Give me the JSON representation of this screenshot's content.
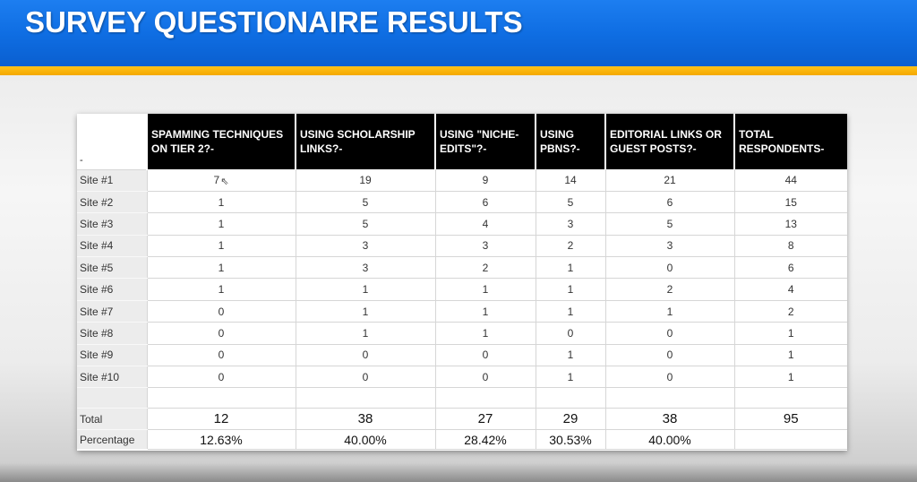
{
  "banner": {
    "title": "SURVEY QUESTIONAIRE RESULTS"
  },
  "table": {
    "corner": "-",
    "headers": [
      "SPAMMING TECHNIQUES ON TIER 2?-",
      "USING SCHOLARSHIP LINKS?-",
      "USING \"NICHE-EDITS\"?-",
      "USING PBNS?-",
      "EDITORIAL LINKS OR GUEST POSTS?-",
      "TOTAL RESPONDENTS-"
    ],
    "rows": [
      {
        "label": "Site #1",
        "values": [
          "7",
          "19",
          "9",
          "14",
          "21",
          "44"
        ]
      },
      {
        "label": "Site #2",
        "values": [
          "1",
          "5",
          "6",
          "5",
          "6",
          "15"
        ]
      },
      {
        "label": "Site #3",
        "values": [
          "1",
          "5",
          "4",
          "3",
          "5",
          "13"
        ]
      },
      {
        "label": "Site #4",
        "values": [
          "1",
          "3",
          "3",
          "2",
          "3",
          "8"
        ]
      },
      {
        "label": "Site #5",
        "values": [
          "1",
          "3",
          "2",
          "1",
          "0",
          "6"
        ]
      },
      {
        "label": "Site #6",
        "values": [
          "1",
          "1",
          "1",
          "1",
          "2",
          "4"
        ]
      },
      {
        "label": "Site #7",
        "values": [
          "0",
          "1",
          "1",
          "1",
          "1",
          "2"
        ]
      },
      {
        "label": "Site #8",
        "values": [
          "0",
          "1",
          "1",
          "0",
          "0",
          "1"
        ]
      },
      {
        "label": "Site #9",
        "values": [
          "0",
          "0",
          "0",
          "1",
          "0",
          "1"
        ]
      },
      {
        "label": "Site #10",
        "values": [
          "0",
          "0",
          "0",
          "1",
          "0",
          "1"
        ]
      }
    ],
    "total": {
      "label": "Total",
      "values": [
        "12",
        "38",
        "27",
        "29",
        "38",
        "95"
      ]
    },
    "percentage": {
      "label": "Percentage",
      "values": [
        "12.63%",
        "40.00%",
        "28.42%",
        "30.53%",
        "40.00%",
        ""
      ]
    }
  },
  "colors": {
    "banner": "#0f6ee3",
    "gold": "#f9b200",
    "header_bg": "#000000"
  },
  "icons": {
    "cursor": "mouse-pointer-icon"
  }
}
